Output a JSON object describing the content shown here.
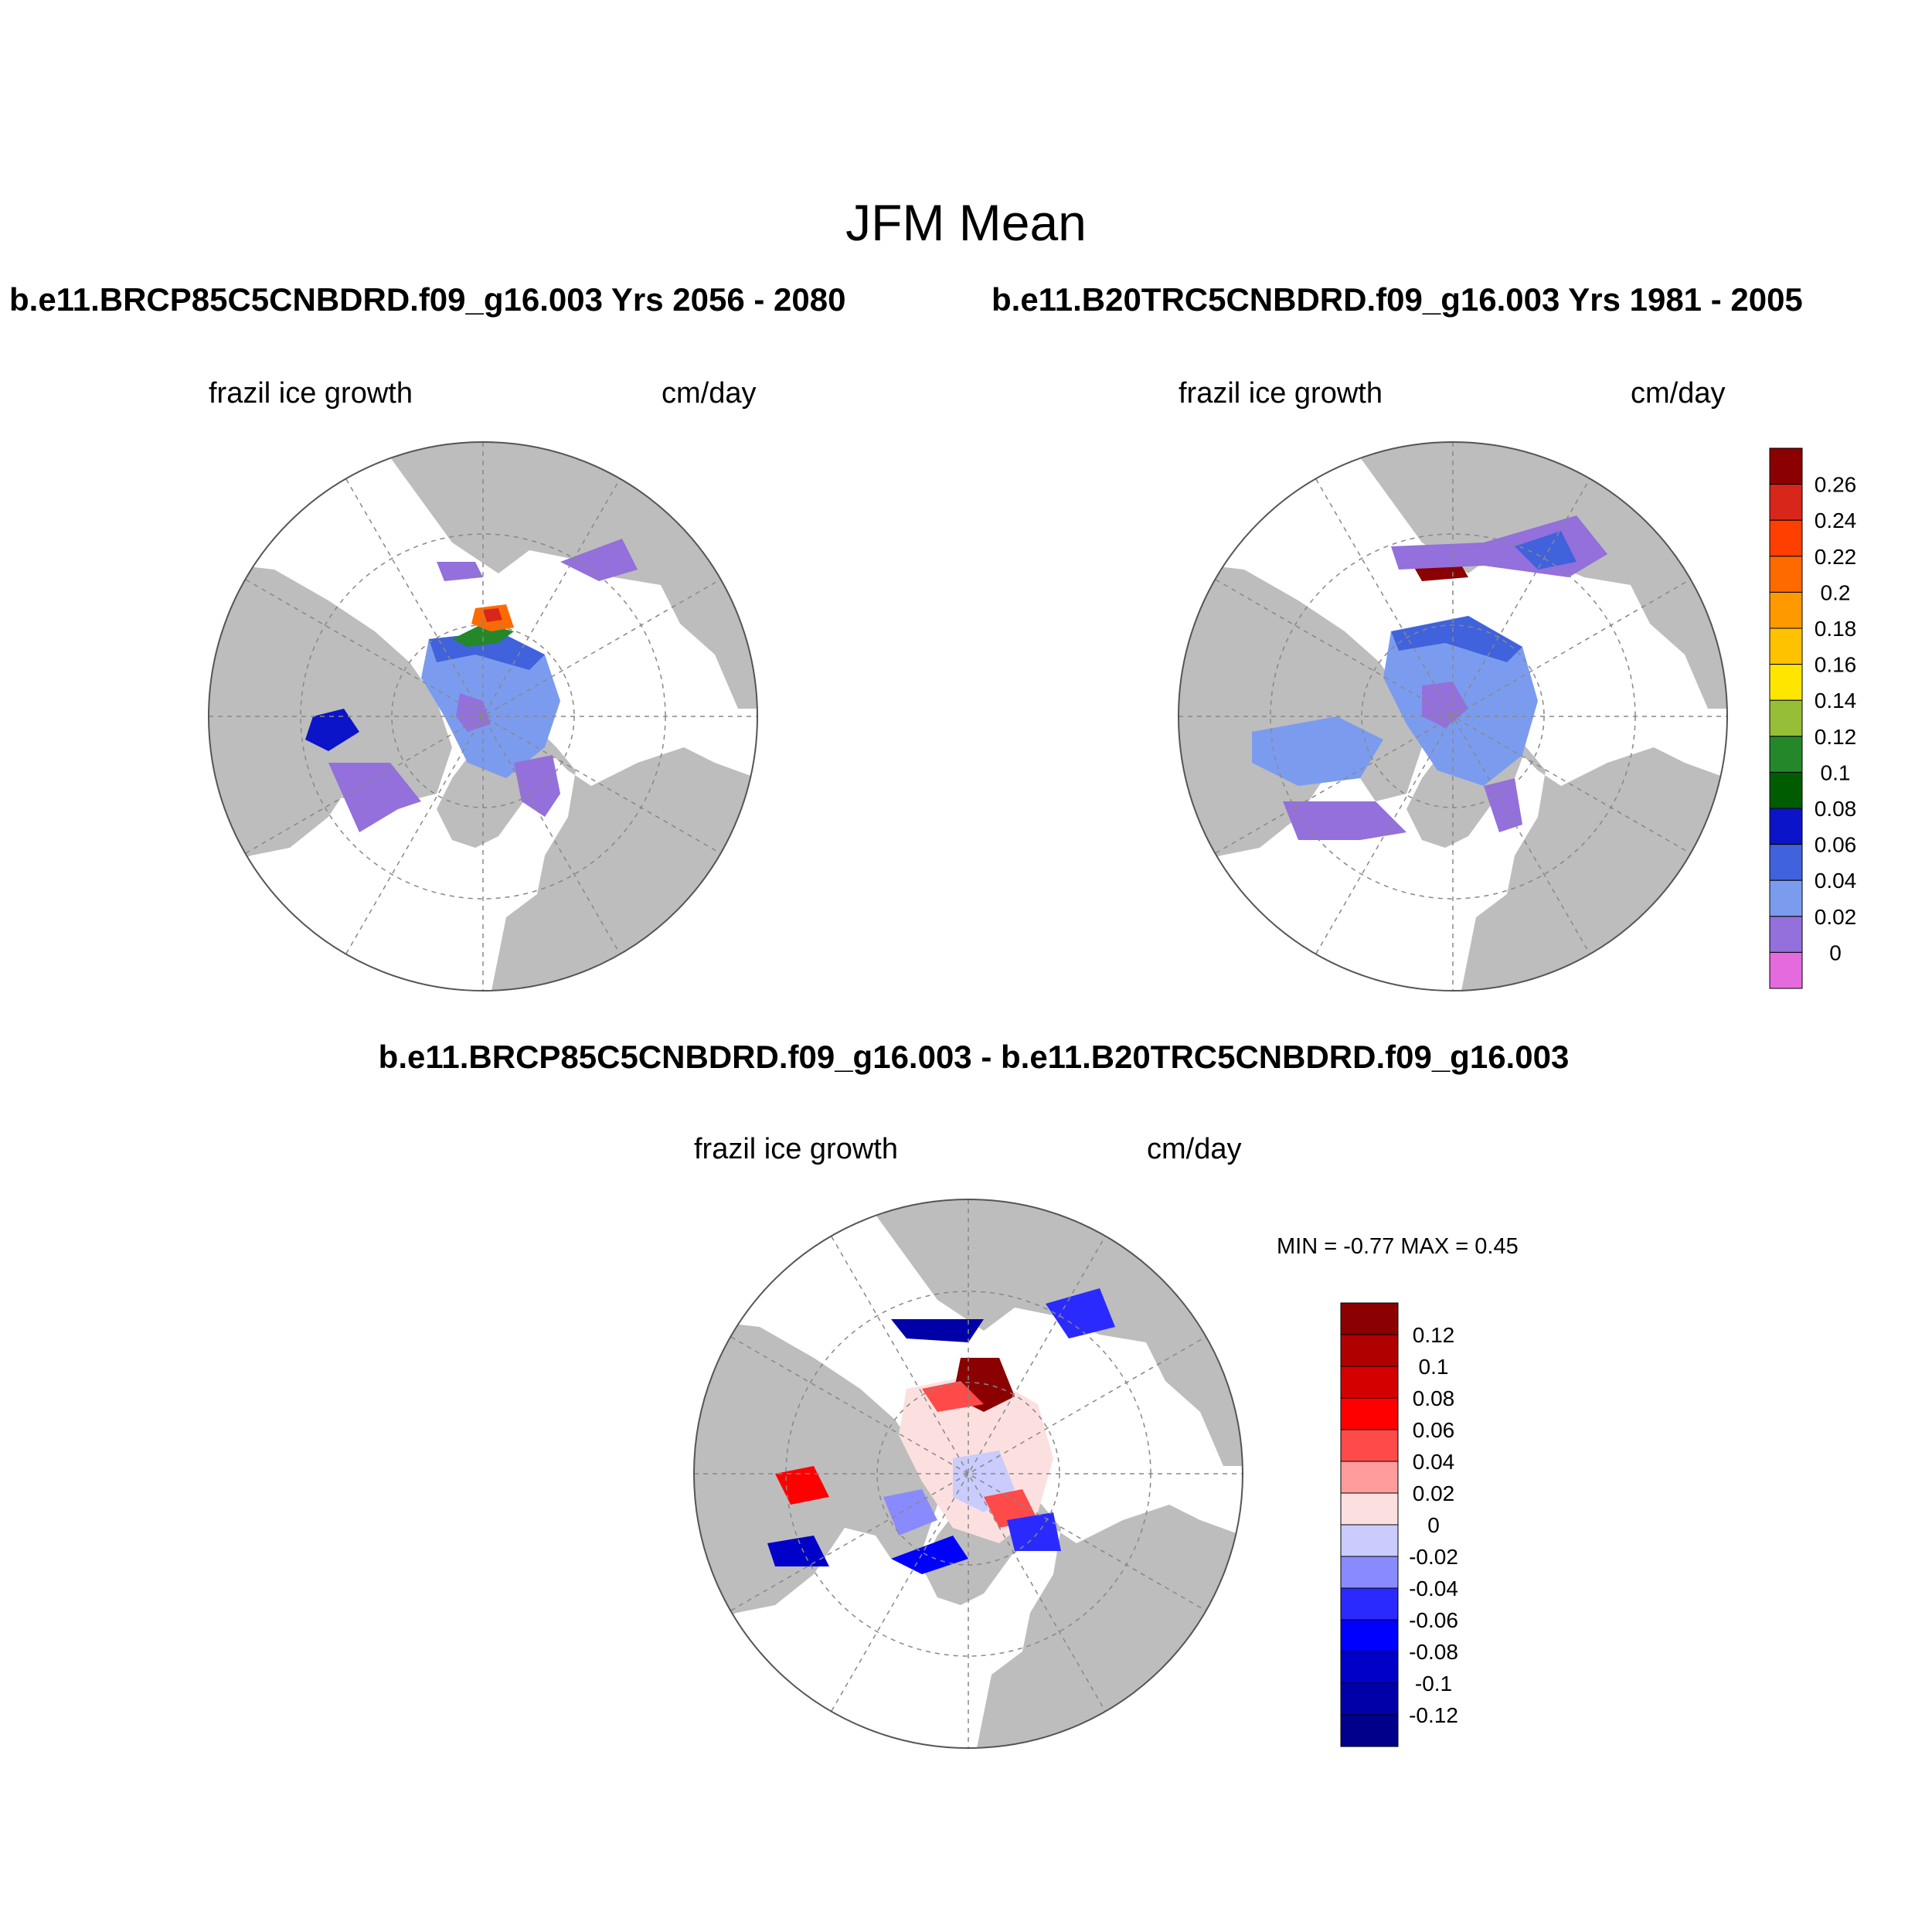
{
  "figure": {
    "title": "JFM Mean",
    "panel_top_left": {
      "case_title": "b.e11.BRCP85C5CNBDRD.f09_g16.003  Yrs 2056 - 2080",
      "variable": "frazil ice growth",
      "units": "cm/day"
    },
    "panel_top_right": {
      "case_title": "b.e11.B20TRC5CNBDRD.f09_g16.003  Yrs 1981 - 2005",
      "variable": "frazil ice growth",
      "units": "cm/day"
    },
    "panel_diff": {
      "case_title": "b.e11.BRCP85C5CNBDRD.f09_g16.003 - b.e11.B20TRC5CNBDRD.f09_g16.003",
      "variable": "frazil ice growth",
      "units": "cm/day",
      "minmax": "MIN =  -0.77 MAX =   0.45"
    },
    "colorbar_main": {
      "labels": [
        "0.26",
        "0.24",
        "0.22",
        "0.2",
        "0.18",
        "0.16",
        "0.14",
        "0.12",
        "0.1",
        "0.08",
        "0.06",
        "0.04",
        "0.02",
        "0"
      ],
      "colors": [
        "#8b0000",
        "#d8261b",
        "#ff3f00",
        "#ff6a00",
        "#ff9900",
        "#ffc200",
        "#ffe600",
        "#96be37",
        "#24882a",
        "#005c00",
        "#0b14c8",
        "#4062dc",
        "#7b9cee",
        "#9370db",
        "#e46ade"
      ]
    },
    "colorbar_diff": {
      "labels": [
        "0.12",
        "0.1",
        "0.08",
        "0.06",
        "0.04",
        "0.02",
        "0",
        "-0.02",
        "-0.04",
        "-0.06",
        "-0.08",
        "-0.1",
        "-0.12"
      ],
      "colors": [
        "#8b0000",
        "#b00000",
        "#d40000",
        "#ff0000",
        "#ff4a4a",
        "#ff9c9c",
        "#fce0e0",
        "#c9ccfc",
        "#8a8aff",
        "#2a2aff",
        "#0000ff",
        "#0000c8",
        "#0000a8",
        "#00008a"
      ]
    },
    "colors": {
      "land": "#bdbdbd",
      "ocean": "#ffffff",
      "grid": "#888888"
    }
  }
}
